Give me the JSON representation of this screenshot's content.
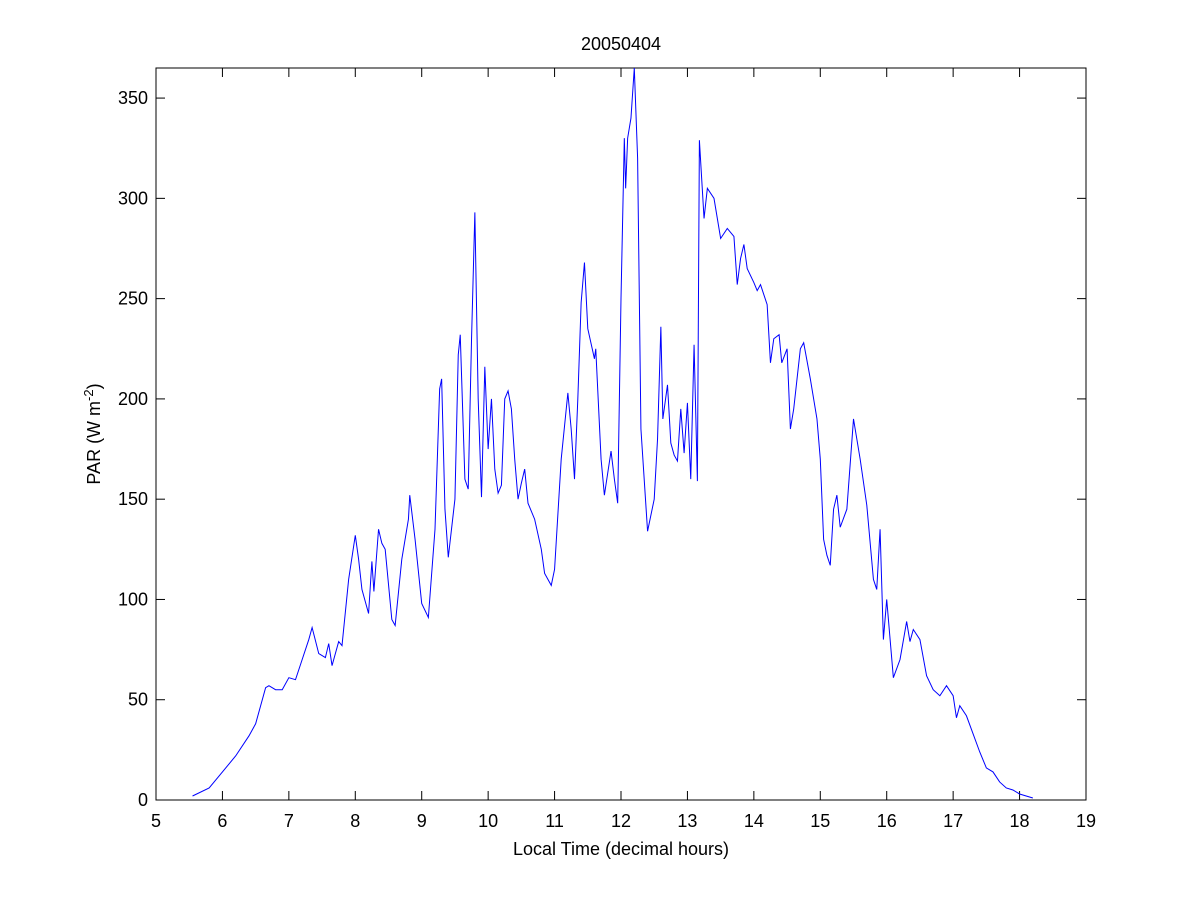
{
  "chart_data": {
    "type": "line",
    "title": "20050404",
    "xlabel": "Local Time (decimal hours)",
    "ylabel": {
      "text": "PAR (W m",
      "superscript": "-2",
      "suffix": ")"
    },
    "x": [
      5.55,
      5.8,
      6.0,
      6.2,
      6.4,
      6.5,
      6.6,
      6.65,
      6.7,
      6.8,
      6.9,
      7.0,
      7.1,
      7.2,
      7.3,
      7.35,
      7.45,
      7.55,
      7.6,
      7.65,
      7.75,
      7.8,
      7.9,
      8.0,
      8.05,
      8.1,
      8.2,
      8.25,
      8.28,
      8.35,
      8.4,
      8.45,
      8.55,
      8.6,
      8.7,
      8.8,
      8.82,
      8.9,
      9.0,
      9.1,
      9.2,
      9.27,
      9.3,
      9.35,
      9.4,
      9.5,
      9.55,
      9.58,
      9.65,
      9.7,
      9.75,
      9.8,
      9.85,
      9.9,
      9.95,
      10.0,
      10.05,
      10.1,
      10.15,
      10.2,
      10.25,
      10.3,
      10.35,
      10.4,
      10.45,
      10.5,
      10.55,
      10.6,
      10.7,
      10.8,
      10.85,
      10.95,
      11.0,
      11.1,
      11.2,
      11.25,
      11.3,
      11.35,
      11.4,
      11.45,
      11.5,
      11.6,
      11.62,
      11.7,
      11.75,
      11.85,
      11.9,
      11.95,
      12.0,
      12.05,
      12.07,
      12.1,
      12.15,
      12.2,
      12.25,
      12.3,
      12.4,
      12.5,
      12.55,
      12.6,
      12.63,
      12.7,
      12.75,
      12.8,
      12.85,
      12.9,
      12.95,
      13.0,
      13.05,
      13.1,
      13.15,
      13.18,
      13.25,
      13.3,
      13.4,
      13.5,
      13.6,
      13.7,
      13.75,
      13.8,
      13.85,
      13.9,
      14.0,
      14.05,
      14.1,
      14.2,
      14.25,
      14.3,
      14.38,
      14.42,
      14.5,
      14.55,
      14.6,
      14.65,
      14.7,
      14.75,
      14.85,
      14.95,
      15.0,
      15.05,
      15.1,
      15.15,
      15.2,
      15.25,
      15.3,
      15.4,
      15.5,
      15.6,
      15.7,
      15.8,
      15.85,
      15.9,
      15.95,
      16.0,
      16.1,
      16.2,
      16.3,
      16.35,
      16.4,
      16.5,
      16.6,
      16.7,
      16.8,
      16.9,
      17.0,
      17.05,
      17.1,
      17.2,
      17.3,
      17.4,
      17.5,
      17.6,
      17.7,
      17.8,
      17.9,
      18.0,
      18.2
    ],
    "series": [
      {
        "color": "#0000ff",
        "values": [
          2,
          6,
          14,
          22,
          32,
          38,
          50,
          56,
          57,
          55,
          55,
          61,
          60,
          70,
          80,
          86,
          73,
          71,
          78,
          67,
          79,
          77,
          110,
          132,
          120,
          105,
          93,
          119,
          104,
          135,
          128,
          125,
          90,
          87,
          120,
          140,
          152,
          130,
          98,
          91,
          135,
          205,
          210,
          145,
          121,
          150,
          222,
          232,
          160,
          155,
          230,
          293,
          200,
          151,
          216,
          175,
          200,
          165,
          153,
          157,
          200,
          204,
          195,
          170,
          150,
          158,
          165,
          148,
          140,
          125,
          113,
          107,
          115,
          170,
          203,
          185,
          160,
          200,
          248,
          268,
          235,
          220,
          225,
          170,
          152,
          174,
          160,
          148,
          250,
          330,
          305,
          330,
          340,
          365,
          320,
          185,
          134,
          150,
          180,
          236,
          190,
          207,
          178,
          172,
          169,
          195,
          173,
          198,
          160,
          227,
          159,
          329,
          290,
          305,
          300,
          280,
          285,
          281,
          257,
          270,
          277,
          265,
          258,
          254,
          257,
          247,
          218,
          230,
          232,
          218,
          225,
          185,
          195,
          210,
          225,
          228,
          210,
          190,
          170,
          130,
          122,
          117,
          145,
          152,
          136,
          145,
          190,
          170,
          147,
          110,
          105,
          135,
          80,
          100,
          61,
          70,
          89,
          79,
          85,
          80,
          62,
          55,
          52,
          57,
          52,
          41,
          47,
          42,
          33,
          24,
          16,
          14,
          9,
          6,
          5,
          3,
          1
        ]
      }
    ],
    "xlim": [
      5,
      19
    ],
    "xticks": [
      5,
      6,
      7,
      8,
      9,
      10,
      11,
      12,
      13,
      14,
      15,
      16,
      17,
      18,
      19
    ],
    "ylim": [
      0,
      365
    ],
    "yticks": [
      0,
      50,
      100,
      150,
      200,
      250,
      300,
      350
    ]
  }
}
